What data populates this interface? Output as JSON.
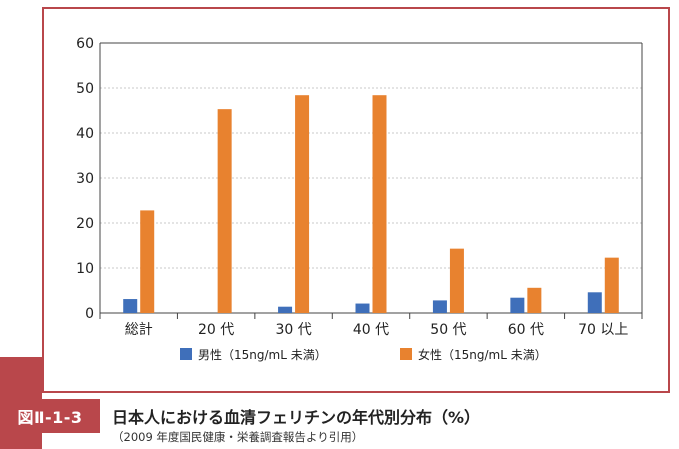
{
  "figure": {
    "label": "図Ⅱ-1-3",
    "title": "日本人における血清フェリチンの年代別分布（%）",
    "source": "（2009 年度国民健康・栄養調査報告より引用）",
    "accent_color": "#b9474b"
  },
  "chart_data": {
    "type": "bar",
    "categories": [
      "総計",
      "20 代",
      "30 代",
      "40 代",
      "50 代",
      "60 代",
      "70 以上"
    ],
    "series": [
      {
        "name": "男性（15ng/mL 未満）",
        "color": "#3f6fba",
        "values": [
          3.1,
          0,
          1.4,
          2.1,
          2.8,
          3.4,
          4.6
        ]
      },
      {
        "name": "女性（15ng/mL 未満）",
        "color": "#e8822f",
        "values": [
          22.8,
          45.3,
          48.4,
          48.4,
          14.3,
          5.6,
          12.3
        ]
      }
    ],
    "ylim": [
      0,
      60
    ],
    "yticks": [
      0,
      10,
      20,
      30,
      40,
      50,
      60
    ],
    "grid": true,
    "legend_position": "bottom"
  }
}
